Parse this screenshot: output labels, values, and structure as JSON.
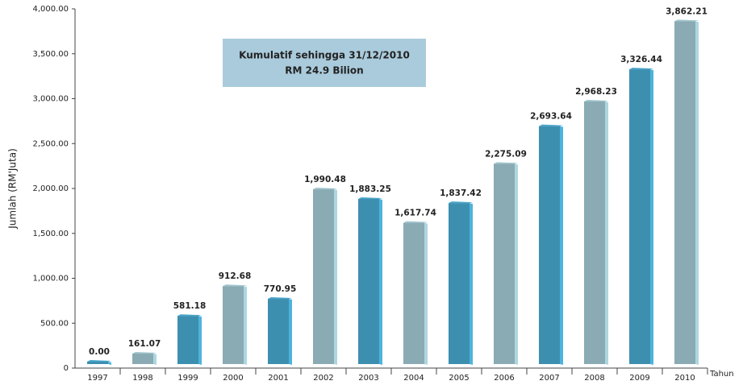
{
  "chart_data": {
    "type": "bar3d",
    "annotation": [
      "Kumulatif sehingga 31/12/2010",
      "RM 24.9 Bilion"
    ],
    "ylabel": "Jumlah (RM'Juta)",
    "xlabel": "Tahun",
    "categories": [
      "1997",
      "1998",
      "1999",
      "2000",
      "2001",
      "2002",
      "2003",
      "2004",
      "2005",
      "2006",
      "2007",
      "2008",
      "2009",
      "2010"
    ],
    "values": [
      0.0,
      161.07,
      581.18,
      912.68,
      770.95,
      1990.48,
      1883.25,
      1617.74,
      1837.42,
      2275.09,
      2693.64,
      2968.23,
      3326.44,
      3862.21
    ],
    "value_labels": [
      "0.00",
      "161.07",
      "581.18",
      "912.68",
      "770.95",
      "1,990.48",
      "1,883.25",
      "1,617.74",
      "1,837.42",
      "2,275.09",
      "2,693.64",
      "2,968.23",
      "3,326.44",
      "3,862.21"
    ],
    "colors": [
      "#3d8fb0",
      "#8aabb3",
      "#3d8fb0",
      "#8aabb3",
      "#3d8fb0",
      "#8aabb3",
      "#3d8fb0",
      "#8aabb3",
      "#3d8fb0",
      "#8aabb3",
      "#3d8fb0",
      "#8aabb3",
      "#3d8fb0",
      "#8aabb3"
    ],
    "ylim": [
      0,
      4000
    ],
    "yticks": [
      0,
      {
        "value": 500,
        "label": "500.00"
      },
      {
        "value": 1000,
        "label": "1,000.00"
      },
      {
        "value": 1500,
        "label": "1,500.00"
      },
      {
        "value": 2000,
        "label": "2,000.00"
      },
      {
        "value": 2500,
        "label": "2,500.00"
      },
      {
        "value": 3000,
        "label": "3,000.00"
      },
      {
        "value": 3500,
        "label": "3,500.00"
      },
      {
        "value": 4000,
        "label": "4,000.00"
      }
    ]
  }
}
